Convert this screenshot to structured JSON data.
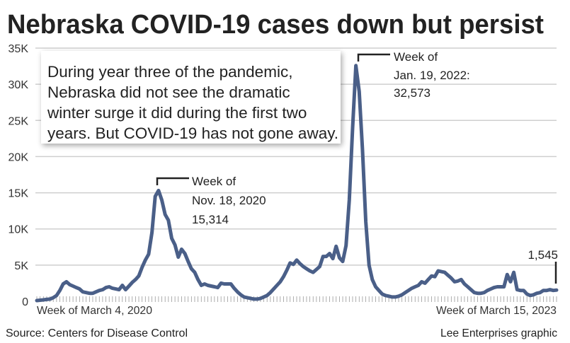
{
  "chart_data": {
    "type": "line",
    "title": "Nebraska COVID-19 cases down but persist",
    "note": [
      "During year three of the pandemic,",
      "Nebraska did not see the dramatic",
      "winter surge it did during the first two",
      "years. But COVID-19 has not gone away."
    ],
    "x_labels": {
      "start": "Week of March 4, 2020",
      "end": "Week of March 15, 2023"
    },
    "x_frequency": "weekly",
    "y_ticks": [
      "0",
      "5K",
      "10K",
      "15K",
      "20K",
      "25K",
      "30K",
      "35K"
    ],
    "ylim": [
      0,
      35000
    ],
    "grid": true,
    "line_color": "#4a5f88",
    "annotations": {
      "peak_2020": [
        "Week of",
        "Nov. 18, 2020",
        "15,314"
      ],
      "peak_2022": [
        "Week of",
        "Jan. 19, 2022:",
        "32,573"
      ],
      "latest": "1,545"
    },
    "values": [
      100,
      150,
      200,
      250,
      300,
      500,
      800,
      1500,
      2400,
      2700,
      2300,
      2100,
      1900,
      1700,
      1300,
      1200,
      1100,
      1100,
      1300,
      1500,
      1600,
      1900,
      2000,
      1800,
      1700,
      1600,
      2200,
      1600,
      2100,
      2600,
      3000,
      3500,
      4700,
      5700,
      6500,
      9500,
      14500,
      15314,
      14000,
      12000,
      11200,
      8700,
      7800,
      6100,
      7200,
      6600,
      5500,
      4500,
      4000,
      3000,
      2200,
      2400,
      2200,
      2100,
      2000,
      1900,
      2500,
      2400,
      2400,
      2400,
      1800,
      1300,
      900,
      600,
      500,
      400,
      300,
      300,
      400,
      600,
      800,
      1200,
      1700,
      2200,
      2700,
      3400,
      4300,
      5300,
      5100,
      5700,
      5200,
      4800,
      4500,
      4200,
      4000,
      4400,
      4800,
      6200,
      6200,
      6600,
      5900,
      7600,
      6000,
      5500,
      7700,
      14000,
      24000,
      32573,
      29000,
      21000,
      11000,
      5000,
      3000,
      2000,
      1500,
      1000,
      800,
      700,
      600,
      600,
      700,
      900,
      1200,
      1500,
      1800,
      2000,
      2200,
      2700,
      2500,
      3000,
      3500,
      3400,
      4200,
      4100,
      4000,
      3600,
      3200,
      2700,
      2800,
      3000,
      2400,
      2000,
      1600,
      1200,
      1100,
      1100,
      1200,
      1500,
      1700,
      1900,
      2000,
      2000,
      2000,
      3700,
      2700,
      4000,
      1600,
      1500,
      1500,
      1000,
      800,
      900,
      1100,
      1200,
      1500,
      1500,
      1600,
      1500,
      1545
    ]
  },
  "footer": {
    "source": "Source: Centers for Disease Control",
    "credit": "Lee Enterprises graphic"
  }
}
